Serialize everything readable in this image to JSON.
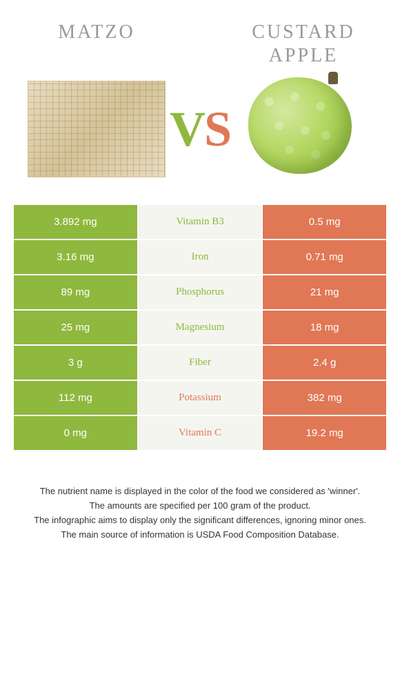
{
  "colors": {
    "green": "#8fb83e",
    "orange": "#e07856",
    "mid_bg": "#f5f5f0"
  },
  "header": {
    "left": "Matzo",
    "right": "Custard Apple"
  },
  "vs": {
    "v": "V",
    "s": "S"
  },
  "rows": [
    {
      "left": "3.892 mg",
      "label": "Vitamin B3",
      "right": "0.5 mg",
      "winner": "left"
    },
    {
      "left": "3.16 mg",
      "label": "Iron",
      "right": "0.71 mg",
      "winner": "left"
    },
    {
      "left": "89 mg",
      "label": "Phosphorus",
      "right": "21 mg",
      "winner": "left"
    },
    {
      "left": "25 mg",
      "label": "Magnesium",
      "right": "18 mg",
      "winner": "left"
    },
    {
      "left": "3 g",
      "label": "Fiber",
      "right": "2.4 g",
      "winner": "left"
    },
    {
      "left": "112 mg",
      "label": "Potassium",
      "right": "382 mg",
      "winner": "right"
    },
    {
      "left": "0 mg",
      "label": "Vitamin C",
      "right": "19.2 mg",
      "winner": "right"
    }
  ],
  "footer": {
    "l1": "The nutrient name is displayed in the color of the food we considered as 'winner'.",
    "l2": "The amounts are specified per 100 gram of the product.",
    "l3": "The infographic aims to display only the significant differences, ignoring minor ones.",
    "l4": "The main source of information is USDA Food Composition Database."
  }
}
